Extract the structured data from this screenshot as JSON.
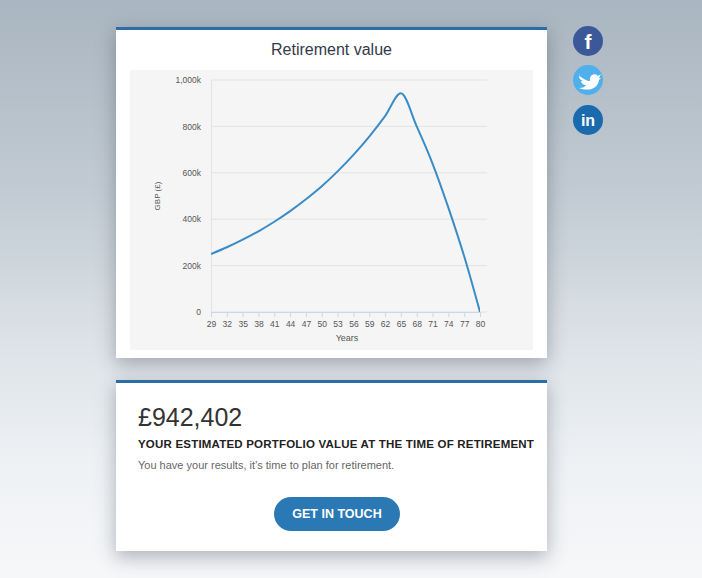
{
  "chart_data": {
    "type": "line",
    "title": "Retirement value",
    "x_label": "Years",
    "y_label": "GBP (£)",
    "x": [
      29,
      32,
      35,
      38,
      41,
      44,
      47,
      50,
      53,
      56,
      59,
      62,
      65,
      68,
      71,
      74,
      77,
      80
    ],
    "values": [
      250000,
      279000,
      312000,
      348000,
      389000,
      435000,
      486000,
      542000,
      606000,
      677000,
      756000,
      844000,
      942402,
      800000,
      640000,
      450000,
      240000,
      0
    ],
    "color": "#3a8cc6",
    "xlim": [
      29,
      80
    ],
    "xticks": [
      29,
      32,
      35,
      38,
      41,
      44,
      47,
      50,
      53,
      56,
      59,
      62,
      65,
      68,
      71,
      74,
      77,
      80
    ],
    "ylim": [
      0,
      1000000
    ],
    "yticks": [
      0,
      {
        "value": 200000,
        "label": "200k"
      },
      {
        "value": 400000,
        "label": "400k"
      },
      {
        "value": 600000,
        "label": "600k"
      },
      {
        "value": 800000,
        "label": "800k"
      },
      {
        "value": 1000000,
        "label": "1,000k"
      }
    ],
    "grid": true
  },
  "result": {
    "value": "£942,402",
    "heading": "YOUR ESTIMATED PORTFOLIO VALUE AT THE TIME OF RETIREMENT",
    "text": "You have your results, it’s time to plan for retirement.",
    "button": "GET IN TOUCH"
  },
  "social": {
    "facebook": "f",
    "linkedin": "in"
  }
}
